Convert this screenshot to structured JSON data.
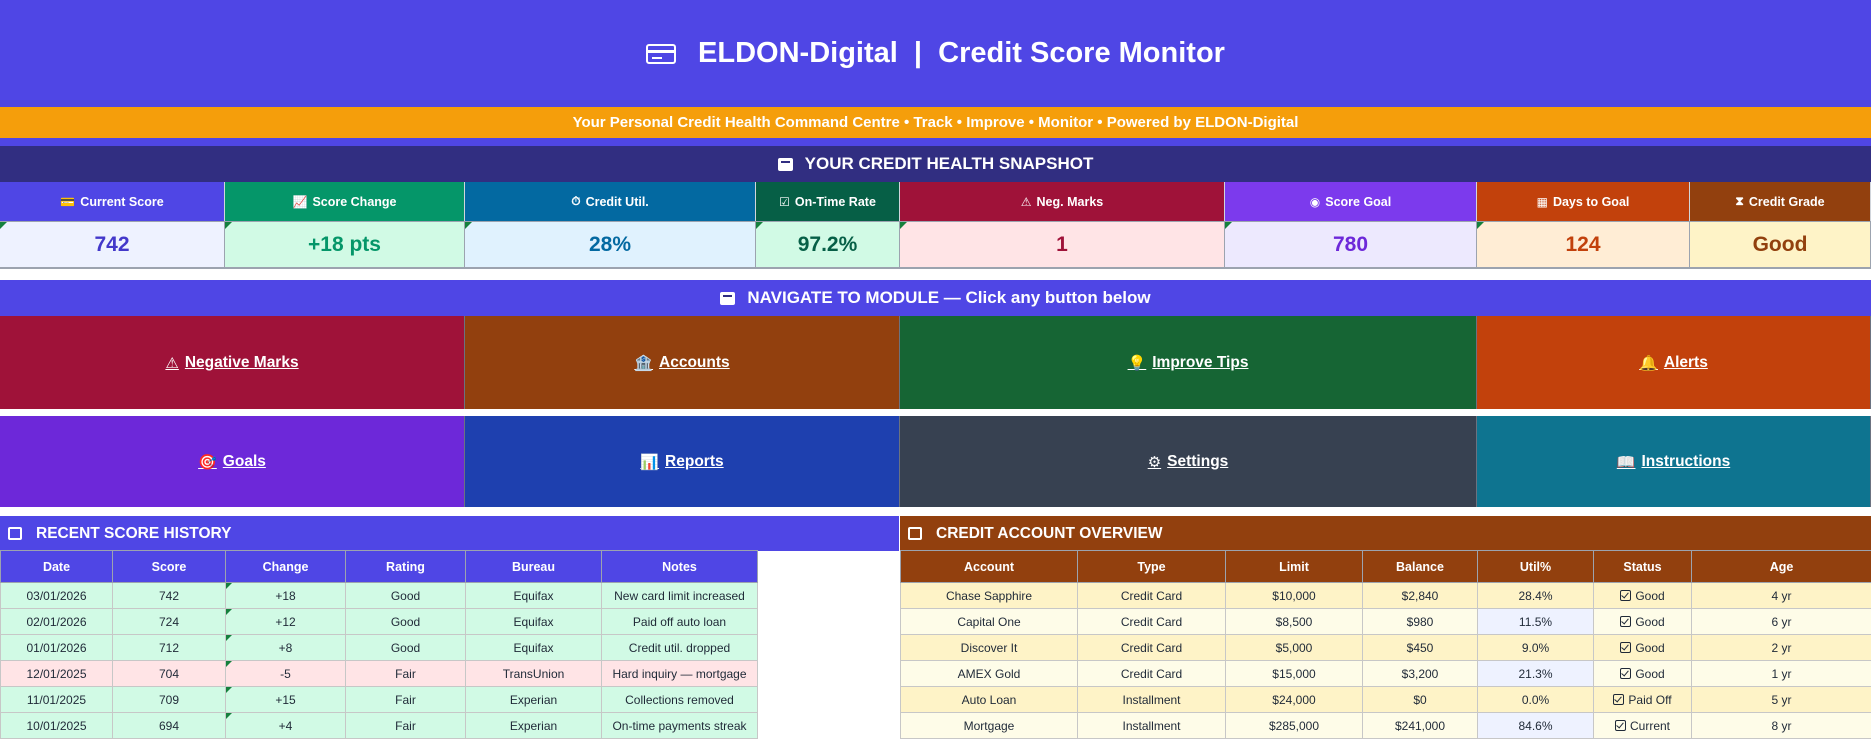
{
  "header": {
    "title": "ELDON-Digital  |  Credit Score Monitor",
    "icon": "credit-card-icon"
  },
  "tagline": "Your Personal Credit Health Command Centre  •  Track  •  Improve  •  Monitor  •  Powered by ELDON-Digital",
  "snapshot": {
    "title": "YOUR CREDIT HEALTH SNAPSHOT",
    "kpis": [
      {
        "label": "Current Score",
        "icon": "💳",
        "value": "742",
        "head_color": "#4f46e5",
        "bg": "#eef2ff",
        "fg": "#4338ca"
      },
      {
        "label": "Score Change",
        "icon": "📈",
        "value": "+18 pts",
        "head_color": "#059669",
        "bg": "#d1fae5",
        "fg": "#059669"
      },
      {
        "label": "Credit Util.",
        "icon": "⏱",
        "value": "28%",
        "head_color": "#0369a1",
        "bg": "#e0f2fe",
        "fg": "#0369a1"
      },
      {
        "label": "On-Time Rate",
        "icon": "☑",
        "value": "97.2%",
        "head_color": "#065f46",
        "bg": "#d1fae5",
        "fg": "#065f46"
      },
      {
        "label": "Neg. Marks",
        "icon": "⚠",
        "value": "1",
        "head_color": "#9f1239",
        "bg": "#ffe4e6",
        "fg": "#9f1239"
      },
      {
        "label": "Score Goal",
        "icon": "◉",
        "value": "780",
        "head_color": "#7c3aed",
        "bg": "#ede9fe",
        "fg": "#6d28d9"
      },
      {
        "label": "Days to Goal",
        "icon": "▦",
        "value": "124",
        "head_color": "#c2410c",
        "bg": "#ffedd5",
        "fg": "#c2410c"
      },
      {
        "label": "Credit Grade",
        "icon": "⧗",
        "value": "Good",
        "head_color": "#92400e",
        "bg": "#fef3c7",
        "fg": "#92400e"
      }
    ]
  },
  "navigation": {
    "title": "NAVIGATE TO MODULE — Click any button below",
    "buttons": [
      {
        "label": "Negative Marks",
        "icon": "⚠",
        "color": "#9f1239"
      },
      {
        "label": "Accounts",
        "icon": "🏦",
        "color": "#92400e"
      },
      {
        "label": "Improve Tips",
        "icon": "💡",
        "color": "#166534"
      },
      {
        "label": "Alerts",
        "icon": "🔔",
        "color": "#c2410c"
      },
      {
        "label": "Goals",
        "icon": "🎯",
        "color": "#6d28d9"
      },
      {
        "label": "Reports",
        "icon": "📊",
        "color": "#1e40af"
      },
      {
        "label": "Settings",
        "icon": "⚙",
        "color": "#374151"
      },
      {
        "label": "Instructions",
        "icon": "📖",
        "color": "#0e7490"
      }
    ]
  },
  "score_history": {
    "title": "RECENT SCORE HISTORY",
    "columns": [
      "Date",
      "Score",
      "Change",
      "Rating",
      "Bureau",
      "Notes"
    ],
    "rows": [
      [
        "03/01/2026",
        "742",
        "+18",
        "Good",
        "Equifax",
        "New card limit increased"
      ],
      [
        "02/01/2026",
        "724",
        "+12",
        "Good",
        "Equifax",
        "Paid off auto loan"
      ],
      [
        "01/01/2026",
        "712",
        "+8",
        "Good",
        "Equifax",
        "Credit util. dropped"
      ],
      [
        "12/01/2025",
        "704",
        "-5",
        "Fair",
        "TransUnion",
        "Hard inquiry — mortgage"
      ],
      [
        "11/01/2025",
        "709",
        "+15",
        "Fair",
        "Experian",
        "Collections removed"
      ],
      [
        "10/01/2025",
        "694",
        "+4",
        "Fair",
        "Experian",
        "On-time payments streak"
      ]
    ],
    "row_colors": [
      "#d1fae5",
      "#d1fae5",
      "#d1fae5",
      "#ffe4e6",
      "#d1fae5",
      "#d1fae5"
    ]
  },
  "accounts": {
    "title": "CREDIT ACCOUNT OVERVIEW",
    "columns": [
      "Account",
      "Type",
      "Limit",
      "Balance",
      "Util%",
      "Status",
      "Age"
    ],
    "rows": [
      [
        "Chase Sapphire",
        "Credit Card",
        "$10,000",
        "$2,840",
        "28.4%",
        "Good",
        "4 yr"
      ],
      [
        "Capital One",
        "Credit Card",
        "$8,500",
        "$980",
        "11.5%",
        "Good",
        "6 yr"
      ],
      [
        "Discover It",
        "Credit Card",
        "$5,000",
        "$450",
        "9.0%",
        "Good",
        "2 yr"
      ],
      [
        "AMEX Gold",
        "Credit Card",
        "$15,000",
        "$3,200",
        "21.3%",
        "Good",
        "1 yr"
      ],
      [
        "Auto Loan",
        "Installment",
        "$24,000",
        "$0",
        "0.0%",
        "Paid Off",
        "5 yr"
      ],
      [
        "Mortgage",
        "Installment",
        "$285,000",
        "$241,000",
        "84.6%",
        "Current",
        "8 yr"
      ]
    ],
    "row_colors": [
      "#fef3c7",
      "#fefce8",
      "#fef3c7",
      "#fefce8",
      "#fef3c7",
      "#fefce8"
    ],
    "util_cell_color": "#eef2ff"
  }
}
